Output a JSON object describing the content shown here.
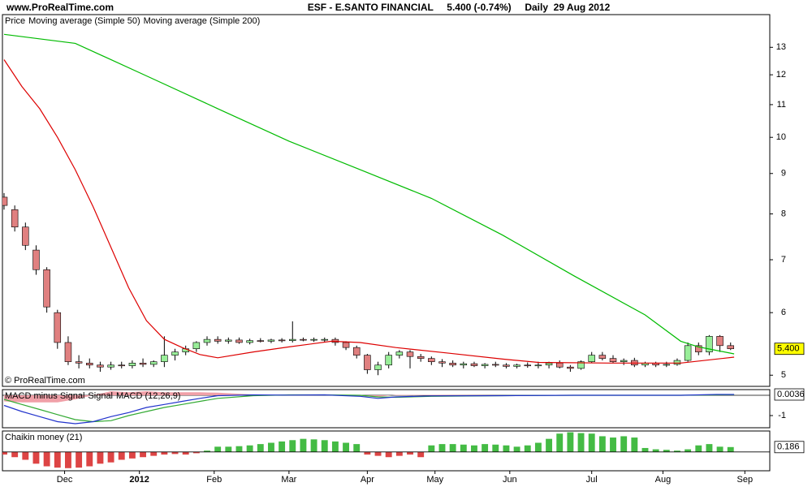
{
  "site": "www.ProRealTime.com",
  "title": "ESF - E.SANTO FINANCIAL     5.400 (-0.74%)     Daily  29 Aug 2012",
  "copyright": "© ProRealTime.com",
  "chart_data": [
    {
      "type": "candlestick",
      "log": true,
      "xlim": [
        0,
        215
      ],
      "ylim": [
        4.84,
        14.3
      ],
      "yticks": [
        5,
        6,
        7,
        8,
        9,
        10,
        11,
        12,
        13
      ],
      "last_label": "5.400",
      "last_color": "#ffff00",
      "candles": {
        "name": "Price",
        "up_color": "#99ee99",
        "down_color": "#e08080",
        "x": [
          0,
          3,
          6,
          9,
          12,
          15,
          18,
          21,
          24,
          27,
          30,
          33,
          36,
          39,
          42,
          45,
          48,
          51,
          54,
          57,
          60,
          63,
          66,
          69,
          72,
          75,
          78,
          81,
          84,
          87,
          90,
          93,
          96,
          99,
          102,
          105,
          108,
          111,
          114,
          117,
          120,
          123,
          126,
          129,
          132,
          135,
          138,
          141,
          144,
          147,
          150,
          153,
          156,
          159,
          162,
          165,
          168,
          171,
          174,
          177,
          180,
          183,
          186,
          189,
          192,
          195,
          198,
          201,
          204
        ],
        "open": [
          8.4,
          8.1,
          7.7,
          7.2,
          6.8,
          6.0,
          5.5,
          5.2,
          5.18,
          5.15,
          5.12,
          5.15,
          5.14,
          5.18,
          5.16,
          5.2,
          5.3,
          5.35,
          5.4,
          5.5,
          5.55,
          5.52,
          5.54,
          5.5,
          5.53,
          5.52,
          5.54,
          5.53,
          5.55,
          5.54,
          5.55,
          5.55,
          5.5,
          5.42,
          5.3,
          5.08,
          5.15,
          5.3,
          5.35,
          5.28,
          5.25,
          5.2,
          5.18,
          5.15,
          5.17,
          5.14,
          5.16,
          5.15,
          5.13,
          5.15,
          5.14,
          5.15,
          5.18,
          5.12,
          5.1,
          5.2,
          5.3,
          5.25,
          5.2,
          5.22,
          5.15,
          5.18,
          5.15,
          5.16,
          5.22,
          5.45,
          5.35,
          5.6,
          5.45
        ],
        "high": [
          8.5,
          8.2,
          7.8,
          7.3,
          6.85,
          6.05,
          5.6,
          5.3,
          5.25,
          5.2,
          5.2,
          5.2,
          5.22,
          5.25,
          5.22,
          5.6,
          5.4,
          5.45,
          5.52,
          5.6,
          5.6,
          5.58,
          5.58,
          5.56,
          5.57,
          5.56,
          5.57,
          5.85,
          5.58,
          5.58,
          5.58,
          5.58,
          5.52,
          5.45,
          5.32,
          5.2,
          5.35,
          5.38,
          5.38,
          5.32,
          5.28,
          5.24,
          5.22,
          5.2,
          5.2,
          5.18,
          5.2,
          5.18,
          5.17,
          5.19,
          5.2,
          5.2,
          5.22,
          5.15,
          5.22,
          5.35,
          5.35,
          5.3,
          5.25,
          5.26,
          5.2,
          5.2,
          5.2,
          5.25,
          5.5,
          5.5,
          5.62,
          5.62,
          5.5
        ],
        "low": [
          8.1,
          7.6,
          7.2,
          6.7,
          6.0,
          5.4,
          5.15,
          5.1,
          5.1,
          5.05,
          5.08,
          5.1,
          5.1,
          5.12,
          5.12,
          5.12,
          5.22,
          5.3,
          5.35,
          5.45,
          5.48,
          5.48,
          5.48,
          5.47,
          5.5,
          5.49,
          5.5,
          5.5,
          5.52,
          5.51,
          5.5,
          5.45,
          5.38,
          5.25,
          5.02,
          5.0,
          5.1,
          5.25,
          5.1,
          5.2,
          5.15,
          5.12,
          5.12,
          5.1,
          5.12,
          5.1,
          5.12,
          5.1,
          5.1,
          5.11,
          5.1,
          5.1,
          5.1,
          5.05,
          5.08,
          5.18,
          5.22,
          5.18,
          5.15,
          5.12,
          5.12,
          5.12,
          5.12,
          5.14,
          5.2,
          5.3,
          5.3,
          5.35,
          5.38
        ],
        "close": [
          8.2,
          7.7,
          7.3,
          6.8,
          6.1,
          5.5,
          5.2,
          5.18,
          5.15,
          5.12,
          5.15,
          5.14,
          5.18,
          5.16,
          5.2,
          5.3,
          5.35,
          5.4,
          5.5,
          5.55,
          5.52,
          5.54,
          5.5,
          5.53,
          5.52,
          5.54,
          5.53,
          5.55,
          5.54,
          5.55,
          5.55,
          5.5,
          5.42,
          5.3,
          5.08,
          5.15,
          5.3,
          5.35,
          5.28,
          5.25,
          5.2,
          5.18,
          5.15,
          5.17,
          5.14,
          5.16,
          5.15,
          5.13,
          5.15,
          5.14,
          5.15,
          5.18,
          5.12,
          5.1,
          5.2,
          5.3,
          5.25,
          5.2,
          5.22,
          5.15,
          5.18,
          5.15,
          5.16,
          5.22,
          5.45,
          5.35,
          5.6,
          5.45,
          5.4
        ]
      },
      "series": [
        {
          "name": "Moving average (Simple 50)",
          "color": "#dd0000",
          "x": [
            0,
            5,
            10,
            15,
            20,
            25,
            30,
            35,
            40,
            45,
            50,
            55,
            60,
            70,
            80,
            92,
            100,
            110,
            125,
            140,
            150,
            170,
            190,
            205
          ],
          "values": [
            12.54,
            11.6,
            10.87,
            10.0,
            9.1,
            8.17,
            7.26,
            6.45,
            5.86,
            5.55,
            5.42,
            5.31,
            5.26,
            5.35,
            5.43,
            5.52,
            5.5,
            5.42,
            5.33,
            5.24,
            5.19,
            5.18,
            5.18,
            5.27
          ]
        },
        {
          "name": "Moving average (Simple 200)",
          "color": "#00bb00",
          "x": [
            0,
            20,
            40,
            60,
            80,
            100,
            120,
            140,
            160,
            180,
            190,
            195,
            205
          ],
          "values": [
            13.5,
            13.15,
            11.96,
            10.87,
            9.89,
            9.1,
            8.37,
            7.52,
            6.68,
            5.96,
            5.52,
            5.43,
            5.32
          ]
        }
      ]
    },
    {
      "type": "line",
      "xlim": [
        0,
        215
      ],
      "ylim": [
        -1.6,
        0.28
      ],
      "yticks": [
        -1
      ],
      "last_label": "0.0036",
      "last_color": "#ffffff",
      "series": [
        {
          "name": "MACD minus Signal",
          "color": "#f0a0a8",
          "style": "area",
          "x": [
            0,
            5,
            10,
            15,
            20,
            25,
            30,
            35,
            40,
            45,
            50,
            55,
            60,
            70,
            80,
            90,
            100,
            105,
            110,
            120,
            140,
            160,
            180,
            190,
            200,
            205
          ],
          "values": [
            -0.3,
            -0.35,
            -0.35,
            -0.35,
            -0.2,
            0,
            0.2,
            0.15,
            0.2,
            0.15,
            0.15,
            0.15,
            0.13,
            0.04,
            -0.01,
            0,
            -0.05,
            -0.07,
            0.02,
            0.02,
            0,
            0,
            0,
            0,
            0.02,
            0.01
          ]
        },
        {
          "name": "Signal",
          "color": "#33aa33",
          "x": [
            0,
            5,
            10,
            15,
            20,
            25,
            30,
            35,
            40,
            45,
            50,
            55,
            60,
            70,
            80,
            90,
            100,
            105,
            110,
            120,
            140,
            160,
            180,
            190,
            200,
            205
          ],
          "values": [
            -0.2,
            -0.45,
            -0.7,
            -0.95,
            -1.2,
            -1.3,
            -1.25,
            -1.0,
            -0.8,
            -0.6,
            -0.45,
            -0.3,
            -0.15,
            -0.02,
            0.02,
            0.02,
            0,
            -0.08,
            -0.1,
            -0.05,
            -0.02,
            0,
            0,
            0,
            0.02,
            0.03
          ]
        },
        {
          "name": "MACD (12,26,9)",
          "color": "#2233cc",
          "x": [
            0,
            5,
            10,
            15,
            20,
            25,
            30,
            35,
            40,
            45,
            50,
            55,
            60,
            70,
            80,
            90,
            100,
            105,
            110,
            120,
            140,
            160,
            180,
            190,
            200,
            205
          ],
          "values": [
            -0.5,
            -0.8,
            -1.05,
            -1.3,
            -1.4,
            -1.3,
            -1.05,
            -0.85,
            -0.6,
            -0.45,
            -0.3,
            -0.15,
            -0.02,
            0.02,
            0.01,
            0.02,
            -0.05,
            -0.15,
            -0.08,
            -0.03,
            -0.02,
            0,
            0,
            0,
            0.04,
            0.04
          ]
        }
      ]
    },
    {
      "type": "bar",
      "xlim": [
        0,
        215
      ],
      "ylim": [
        -0.72,
        0.8
      ],
      "last_label": "0.186",
      "last_color": "#ffffff",
      "series": [
        {
          "name": "Chaikin money (21)",
          "color": "#44bb44",
          "down_color": "#dd4444",
          "x": [
            0,
            3,
            6,
            9,
            12,
            15,
            18,
            21,
            24,
            27,
            30,
            33,
            36,
            39,
            42,
            45,
            48,
            51,
            54,
            57,
            60,
            63,
            66,
            69,
            72,
            75,
            78,
            81,
            84,
            87,
            90,
            93,
            96,
            99,
            102,
            105,
            108,
            111,
            114,
            117,
            120,
            123,
            126,
            129,
            132,
            135,
            138,
            141,
            144,
            147,
            150,
            153,
            156,
            159,
            162,
            165,
            168,
            171,
            174,
            177,
            180,
            183,
            186,
            189,
            192,
            195,
            198,
            201,
            204
          ],
          "values": [
            -0.1,
            -0.2,
            -0.3,
            -0.45,
            -0.55,
            -0.6,
            -0.62,
            -0.6,
            -0.55,
            -0.45,
            -0.4,
            -0.3,
            -0.25,
            -0.2,
            -0.15,
            -0.1,
            -0.08,
            -0.1,
            -0.05,
            0.05,
            0.2,
            0.2,
            0.22,
            0.25,
            0.3,
            0.35,
            0.4,
            0.45,
            0.5,
            0.48,
            0.45,
            0.4,
            0.35,
            0.3,
            -0.1,
            -0.15,
            -0.2,
            -0.15,
            -0.1,
            -0.2,
            0.25,
            0.3,
            0.3,
            0.28,
            0.25,
            0.3,
            0.28,
            0.25,
            0.2,
            0.25,
            0.35,
            0.5,
            0.7,
            0.75,
            0.72,
            0.7,
            0.6,
            0.55,
            0.6,
            0.55,
            0.15,
            0.1,
            0.08,
            0.05,
            0.1,
            0.25,
            0.3,
            0.2,
            0.186
          ]
        }
      ],
      "xticks": [
        {
          "value": 17,
          "label": "Dec"
        },
        {
          "value": 38,
          "label": "2012"
        },
        {
          "value": 59,
          "label": "Feb"
        },
        {
          "value": 80,
          "label": "Mar"
        },
        {
          "value": 102,
          "label": "Apr"
        },
        {
          "value": 121,
          "label": "May"
        },
        {
          "value": 142,
          "label": "Jun"
        },
        {
          "value": 165,
          "label": "Jul"
        },
        {
          "value": 185,
          "label": "Aug"
        },
        {
          "value": 208,
          "label": "Sep"
        }
      ]
    }
  ]
}
